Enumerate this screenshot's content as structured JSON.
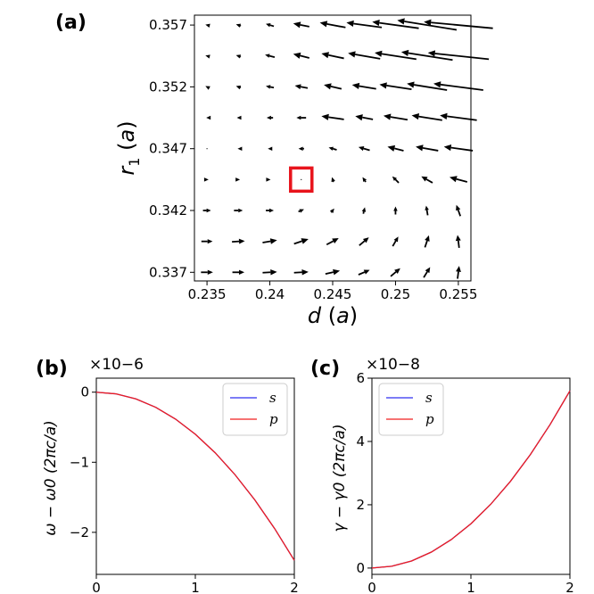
{
  "chart_data": [
    {
      "panel": "(a)",
      "type": "quiver",
      "xlabel": "d (a)",
      "ylabel": "r1 (a)",
      "xlim": [
        0.234,
        0.256
      ],
      "ylim": [
        0.3363,
        0.3578
      ],
      "x_ticks": [
        0.235,
        0.24,
        0.245,
        0.25,
        0.255
      ],
      "x_tick_labels": [
        "0.235",
        "0.24",
        "0.245",
        "0.25",
        "0.255"
      ],
      "y_ticks": [
        0.337,
        0.342,
        0.347,
        0.352,
        0.357
      ],
      "y_tick_labels": [
        "0.337",
        "0.342",
        "0.347",
        "0.352",
        "0.357"
      ],
      "x": [
        0.235,
        0.2375,
        0.24,
        0.2425,
        0.245,
        0.2475,
        0.25,
        0.2525,
        0.255
      ],
      "y": [
        0.337,
        0.3395,
        0.342,
        0.3445,
        0.347,
        0.3495,
        0.352,
        0.3545,
        0.357
      ],
      "u": [
        [
          0.15,
          0.15,
          0.18,
          0.18,
          0.18,
          0.14,
          0.12,
          0.08,
          0.02
        ],
        [
          0.14,
          0.16,
          0.18,
          0.18,
          0.15,
          0.12,
          0.07,
          0.05,
          -0.02
        ],
        [
          0.1,
          0.11,
          0.1,
          0.07,
          0.04,
          0.02,
          0.0,
          -0.02,
          -0.05
        ],
        [
          0.04,
          0.04,
          0.02,
          0.0,
          -0.02,
          -0.04,
          -0.08,
          -0.14,
          -0.22
        ],
        [
          0.0,
          -0.02,
          -0.05,
          -0.07,
          -0.1,
          -0.14,
          -0.2,
          -0.28,
          -0.36
        ],
        [
          -0.02,
          -0.04,
          -0.08,
          -0.12,
          -0.28,
          -0.22,
          -0.3,
          -0.38,
          -0.46
        ],
        [
          -0.04,
          -0.06,
          -0.1,
          -0.16,
          -0.22,
          -0.3,
          -0.4,
          -0.5,
          -0.62
        ],
        [
          -0.04,
          -0.06,
          -0.12,
          -0.2,
          -0.28,
          -0.4,
          -0.52,
          -0.64,
          -0.76
        ],
        [
          -0.04,
          -0.06,
          -0.1,
          -0.2,
          -0.32,
          -0.44,
          -0.58,
          -0.74,
          -0.86
        ]
      ],
      "v": [
        [
          0.0,
          0.0,
          0.01,
          0.01,
          0.04,
          0.06,
          0.1,
          0.13,
          0.16
        ],
        [
          0.0,
          0.01,
          0.03,
          0.06,
          0.08,
          0.1,
          0.12,
          0.15,
          0.16
        ],
        [
          0.0,
          0.0,
          0.0,
          0.03,
          0.05,
          0.08,
          0.1,
          0.12,
          0.14
        ],
        [
          0.0,
          0.0,
          0.0,
          0.0,
          0.06,
          0.06,
          0.08,
          0.08,
          0.06
        ],
        [
          0.0,
          0.0,
          0.0,
          0.0,
          0.03,
          0.04,
          0.05,
          0.05,
          0.05
        ],
        [
          0.0,
          0.0,
          0.0,
          0.0,
          0.04,
          0.04,
          0.05,
          0.06,
          0.06
        ],
        [
          0.02,
          0.02,
          0.02,
          0.03,
          0.05,
          0.05,
          0.06,
          0.08,
          0.08
        ],
        [
          0.01,
          0.02,
          0.03,
          0.05,
          0.06,
          0.07,
          0.08,
          0.1,
          0.08
        ],
        [
          0.01,
          0.02,
          0.03,
          0.04,
          0.06,
          0.06,
          0.08,
          0.12,
          0.08
        ]
      ],
      "highlight": {
        "x": 0.2425,
        "y": 0.3445,
        "color": "#e8141c"
      }
    },
    {
      "panel": "(b)",
      "type": "line",
      "xlabel": "",
      "ylabel": "ω − ω0 (2πc/a)",
      "exponent": "×10−6",
      "xlim": [
        0,
        2
      ],
      "ylim": [
        -2.6,
        0.2
      ],
      "x_ticks": [
        0,
        1,
        2
      ],
      "x_tick_labels": [
        "0",
        "1",
        "2"
      ],
      "y_ticks": [
        0,
        -1,
        -2
      ],
      "y_tick_labels": [
        "0",
        "−1",
        "−2"
      ],
      "x": [
        0,
        0.2,
        0.4,
        0.6,
        0.8,
        1.0,
        1.2,
        1.4,
        1.6,
        1.8,
        2.0
      ],
      "series": [
        {
          "name": "s",
          "color": "#2d2df0",
          "values": [
            0,
            -0.024,
            -0.096,
            -0.216,
            -0.384,
            -0.6,
            -0.864,
            -1.176,
            -1.536,
            -1.944,
            -2.4
          ]
        },
        {
          "name": "p",
          "color": "#f01e1e",
          "values": [
            0,
            -0.024,
            -0.096,
            -0.216,
            -0.384,
            -0.6,
            -0.864,
            -1.176,
            -1.536,
            -1.944,
            -2.4
          ]
        }
      ],
      "legend": "top-right"
    },
    {
      "panel": "(c)",
      "type": "line",
      "xlabel": "",
      "ylabel": "γ − γ0 (2πc/a)",
      "exponent": "×10−8",
      "xlim": [
        0,
        2
      ],
      "ylim": [
        -0.2,
        6
      ],
      "x_ticks": [
        0,
        1,
        2
      ],
      "x_tick_labels": [
        "0",
        "1",
        "2"
      ],
      "y_ticks": [
        0,
        2,
        4,
        6
      ],
      "y_tick_labels": [
        "0",
        "2",
        "4",
        "6"
      ],
      "x": [
        0,
        0.2,
        0.4,
        0.6,
        0.8,
        1.0,
        1.2,
        1.4,
        1.6,
        1.8,
        2.0
      ],
      "series": [
        {
          "name": "s",
          "color": "#2d2df0",
          "values": [
            0,
            0.056,
            0.224,
            0.504,
            0.896,
            1.4,
            2.016,
            2.744,
            3.584,
            4.536,
            5.6
          ]
        },
        {
          "name": "p",
          "color": "#f01e1e",
          "values": [
            0,
            0.056,
            0.224,
            0.504,
            0.896,
            1.4,
            2.016,
            2.744,
            3.584,
            4.536,
            5.6
          ]
        }
      ],
      "legend": "top-left"
    }
  ]
}
